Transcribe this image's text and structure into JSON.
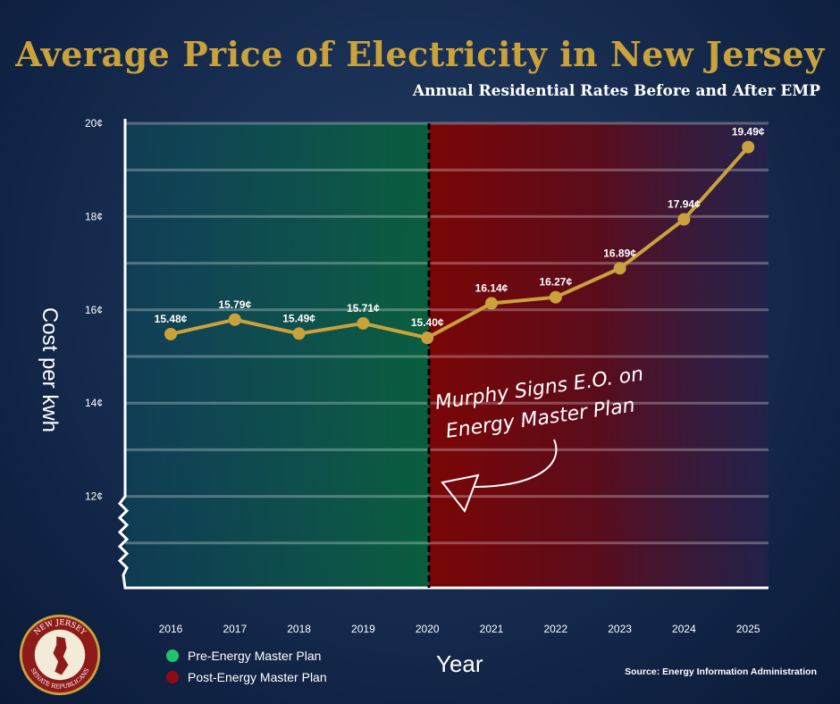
{
  "chart_data": {
    "type": "line",
    "title": "Average Price of Electricity in New Jersey",
    "subtitle": "Annual Residential Rates Before and After EMP",
    "xlabel": "Year",
    "ylabel": "Cost per kwh",
    "categories": [
      "2016",
      "2017",
      "2018",
      "2019",
      "2020",
      "2021",
      "2022",
      "2023",
      "2024",
      "2025"
    ],
    "values": [
      15.48,
      15.79,
      15.49,
      15.71,
      15.4,
      16.14,
      16.27,
      16.89,
      17.94,
      19.49
    ],
    "data_labels": [
      "15.48¢",
      "15.79¢",
      "15.49¢",
      "15.71¢",
      "15.40¢",
      "16.14¢",
      "16.27¢",
      "16.89¢",
      "17.94¢",
      "19.49¢"
    ],
    "yticks": [
      12,
      14,
      16,
      18,
      20
    ],
    "ytick_labels": [
      "12¢",
      "14¢",
      "16¢",
      "18¢",
      "20¢"
    ],
    "ylim": [
      10,
      20
    ],
    "grid": true,
    "axis_break": true,
    "annotation": {
      "lines": [
        "Murphy Signs E.O. on",
        "Energy Master Plan"
      ],
      "at_year": "2020"
    },
    "regions": [
      {
        "name": "Pre-Energy Master Plan",
        "from": "2016",
        "to": "2020",
        "color": "#0d6b45"
      },
      {
        "name": "Post-Energy Master Plan",
        "from": "2020",
        "to": "2025",
        "color": "#7a0606"
      }
    ],
    "legend": [
      {
        "label": "Pre-Energy Master Plan",
        "color": "#1fc46a"
      },
      {
        "label": "Post-Energy Master Plan",
        "color": "#8e0a15"
      }
    ],
    "legend_placement": "bottom-left",
    "line_color": "#c9a23c"
  },
  "source": "Source: Energy Information Administration",
  "logo": {
    "top": "NEW JERSEY",
    "bottom": "SENATE REPUBLICANS"
  }
}
